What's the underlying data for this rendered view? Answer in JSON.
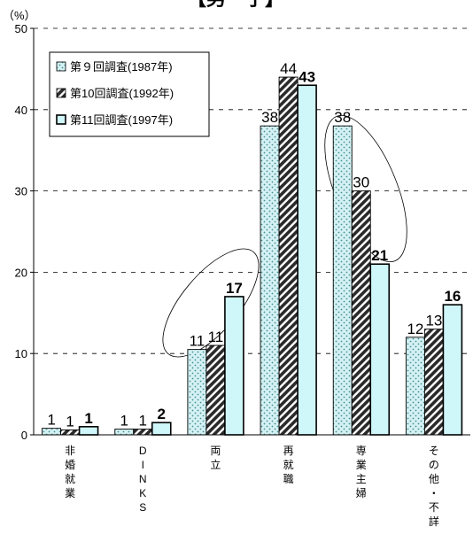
{
  "chart_data": {
    "type": "bar",
    "title": "【男　子】",
    "ylabel": "（%）",
    "ylim": [
      0,
      50
    ],
    "yticks": [
      0,
      10,
      20,
      30,
      40,
      50
    ],
    "grid": true,
    "legend_position": "top-left",
    "categories": [
      "非婚就業",
      "DINKS",
      "両立",
      "再就職",
      "専業主婦",
      "その他・不詳"
    ],
    "series": [
      {
        "name": "第９回調査(1987年)",
        "pattern": "dots",
        "color": "#cdeef0",
        "values": [
          0.8,
          0.7,
          10.5,
          38.0,
          38.0,
          12.0
        ],
        "labels": [
          "1",
          "1",
          "11",
          "38",
          "38",
          "12"
        ]
      },
      {
        "name": "第10回調査(1992年)",
        "pattern": "hatch",
        "color": "#333333",
        "values": [
          0.6,
          0.7,
          11.0,
          44.0,
          30.0,
          13.0
        ],
        "labels": [
          "1",
          "1",
          "11",
          "44",
          "30",
          "13"
        ]
      },
      {
        "name": "第11回調査(1997年)",
        "pattern": "solid",
        "color": "#cff6f9",
        "values": [
          1.0,
          1.5,
          17.0,
          43.0,
          21.0,
          16.0
        ],
        "labels": [
          "1",
          "2",
          "17",
          "43",
          "21",
          "16"
        ]
      }
    ],
    "annotations": [
      "ellipse around 両立 bars",
      "ellipse around 専業主婦 bars"
    ]
  }
}
